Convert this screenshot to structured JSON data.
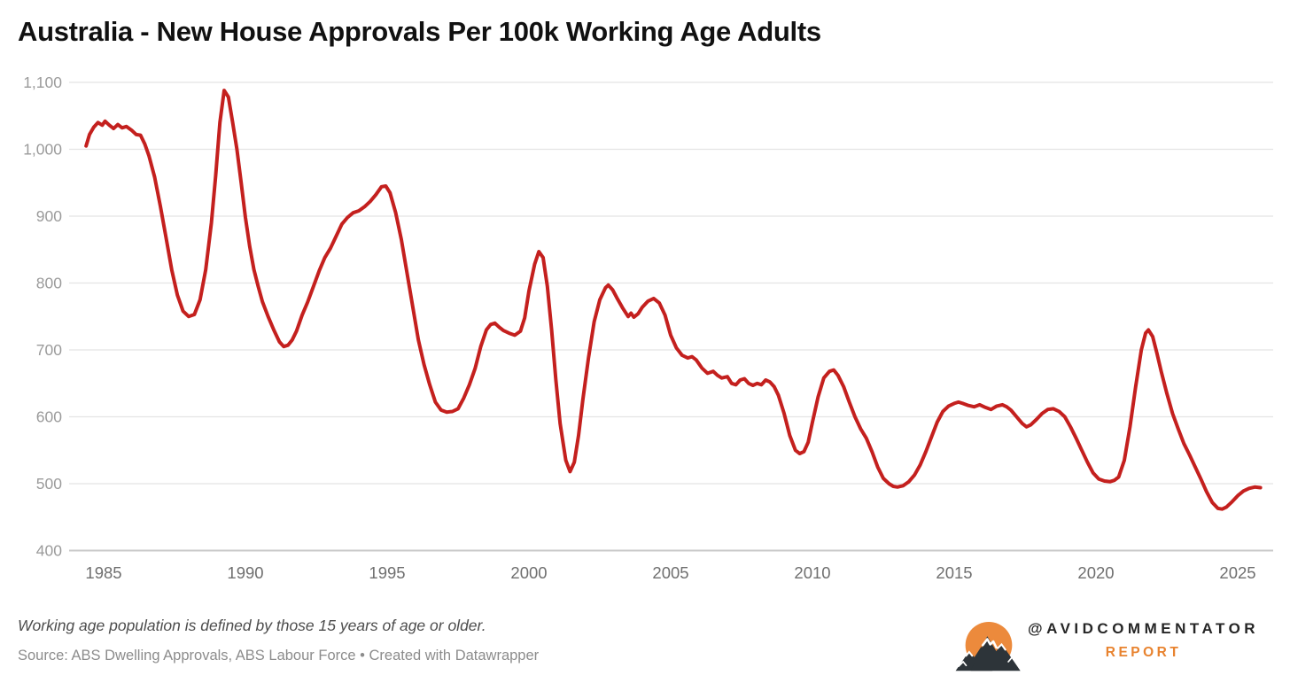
{
  "header": {
    "title": "Australia - New House Approvals Per 100k Working Age Adults"
  },
  "footer": {
    "note": "Working age population is defined by those 15 years of age or older.",
    "source": "Source: ABS Dwelling Approvals, ABS Labour Force • Created with Datawrapper"
  },
  "branding": {
    "handle": "@AVIDCOMMENTATOR",
    "subtitle": "REPORT",
    "icon": "mountain-sun-logo",
    "orange": "#ec8a3c",
    "dark": "#2d3439"
  },
  "chart_data": {
    "type": "line",
    "title": "Australia - New House Approvals Per 100k Working Age Adults",
    "xlabel": "",
    "ylabel": "",
    "grid": "horizontal",
    "legend": "none",
    "xlim": [
      1983.8,
      2026.25
    ],
    "ylim": [
      400,
      1100
    ],
    "x_ticks": [
      1985,
      1990,
      1995,
      2000,
      2005,
      2010,
      2015,
      2020,
      2025
    ],
    "y_ticks": [
      400,
      500,
      600,
      700,
      800,
      900,
      1000,
      1100
    ],
    "y_tick_labels": [
      "400",
      "500",
      "600",
      "700",
      "800",
      "900",
      "1,000",
      "1,100"
    ],
    "line_color": "#c4201e",
    "axis_label_color_y": "#9b9b9b",
    "axis_label_color_x": "#6f6f6f",
    "gridline_color": "#e4e4e4",
    "baseline_color": "#c9c9c9",
    "series": [
      {
        "name": "New house approvals per 100k working age adults",
        "points": [
          [
            1984.38,
            1005
          ],
          [
            1984.5,
            1022
          ],
          [
            1984.65,
            1033
          ],
          [
            1984.8,
            1040
          ],
          [
            1984.95,
            1036
          ],
          [
            1985.05,
            1042
          ],
          [
            1985.2,
            1036
          ],
          [
            1985.35,
            1031
          ],
          [
            1985.5,
            1037
          ],
          [
            1985.65,
            1032
          ],
          [
            1985.8,
            1034
          ],
          [
            1986.0,
            1028
          ],
          [
            1986.15,
            1022
          ],
          [
            1986.3,
            1021
          ],
          [
            1986.45,
            1008
          ],
          [
            1986.6,
            990
          ],
          [
            1986.8,
            958
          ],
          [
            1987.0,
            915
          ],
          [
            1987.2,
            868
          ],
          [
            1987.4,
            820
          ],
          [
            1987.6,
            782
          ],
          [
            1987.8,
            758
          ],
          [
            1988.0,
            750
          ],
          [
            1988.2,
            753
          ],
          [
            1988.4,
            775
          ],
          [
            1988.6,
            820
          ],
          [
            1988.8,
            890
          ],
          [
            1988.95,
            960
          ],
          [
            1989.1,
            1040
          ],
          [
            1989.25,
            1088
          ],
          [
            1989.4,
            1078
          ],
          [
            1989.55,
            1040
          ],
          [
            1989.7,
            1000
          ],
          [
            1989.85,
            950
          ],
          [
            1990.0,
            898
          ],
          [
            1990.15,
            855
          ],
          [
            1990.3,
            820
          ],
          [
            1990.45,
            795
          ],
          [
            1990.6,
            772
          ],
          [
            1990.8,
            750
          ],
          [
            1991.0,
            730
          ],
          [
            1991.2,
            712
          ],
          [
            1991.35,
            705
          ],
          [
            1991.5,
            707
          ],
          [
            1991.65,
            715
          ],
          [
            1991.8,
            728
          ],
          [
            1992.0,
            752
          ],
          [
            1992.2,
            772
          ],
          [
            1992.4,
            795
          ],
          [
            1992.6,
            818
          ],
          [
            1992.8,
            838
          ],
          [
            1993.0,
            852
          ],
          [
            1993.2,
            870
          ],
          [
            1993.4,
            888
          ],
          [
            1993.6,
            898
          ],
          [
            1993.8,
            905
          ],
          [
            1994.0,
            908
          ],
          [
            1994.2,
            914
          ],
          [
            1994.4,
            922
          ],
          [
            1994.6,
            932
          ],
          [
            1994.8,
            944
          ],
          [
            1994.95,
            945
          ],
          [
            1995.1,
            935
          ],
          [
            1995.3,
            905
          ],
          [
            1995.5,
            865
          ],
          [
            1995.7,
            815
          ],
          [
            1995.9,
            765
          ],
          [
            1996.1,
            715
          ],
          [
            1996.3,
            678
          ],
          [
            1996.5,
            648
          ],
          [
            1996.7,
            622
          ],
          [
            1996.9,
            610
          ],
          [
            1997.1,
            607
          ],
          [
            1997.3,
            608
          ],
          [
            1997.5,
            612
          ],
          [
            1997.7,
            628
          ],
          [
            1997.9,
            648
          ],
          [
            1998.1,
            672
          ],
          [
            1998.3,
            705
          ],
          [
            1998.5,
            730
          ],
          [
            1998.65,
            738
          ],
          [
            1998.8,
            740
          ],
          [
            1998.95,
            734
          ],
          [
            1999.1,
            729
          ],
          [
            1999.3,
            725
          ],
          [
            1999.5,
            722
          ],
          [
            1999.7,
            728
          ],
          [
            1999.85,
            748
          ],
          [
            2000.0,
            788
          ],
          [
            2000.2,
            828
          ],
          [
            2000.35,
            847
          ],
          [
            2000.5,
            838
          ],
          [
            2000.65,
            795
          ],
          [
            2000.8,
            730
          ],
          [
            2000.95,
            655
          ],
          [
            2001.1,
            590
          ],
          [
            2001.3,
            535
          ],
          [
            2001.45,
            518
          ],
          [
            2001.6,
            532
          ],
          [
            2001.75,
            572
          ],
          [
            2001.9,
            625
          ],
          [
            2002.1,
            688
          ],
          [
            2002.3,
            742
          ],
          [
            2002.5,
            775
          ],
          [
            2002.7,
            793
          ],
          [
            2002.8,
            797
          ],
          [
            2002.95,
            790
          ],
          [
            2003.1,
            778
          ],
          [
            2003.3,
            763
          ],
          [
            2003.5,
            750
          ],
          [
            2003.6,
            755
          ],
          [
            2003.7,
            749
          ],
          [
            2003.85,
            754
          ],
          [
            2004.0,
            764
          ],
          [
            2004.2,
            773
          ],
          [
            2004.4,
            777
          ],
          [
            2004.6,
            770
          ],
          [
            2004.8,
            752
          ],
          [
            2005.0,
            722
          ],
          [
            2005.2,
            703
          ],
          [
            2005.4,
            692
          ],
          [
            2005.6,
            688
          ],
          [
            2005.75,
            690
          ],
          [
            2005.9,
            685
          ],
          [
            2006.1,
            673
          ],
          [
            2006.3,
            665
          ],
          [
            2006.5,
            668
          ],
          [
            2006.65,
            662
          ],
          [
            2006.8,
            658
          ],
          [
            2007.0,
            660
          ],
          [
            2007.15,
            650
          ],
          [
            2007.3,
            648
          ],
          [
            2007.45,
            655
          ],
          [
            2007.6,
            657
          ],
          [
            2007.75,
            650
          ],
          [
            2007.9,
            647
          ],
          [
            2008.05,
            650
          ],
          [
            2008.2,
            648
          ],
          [
            2008.35,
            655
          ],
          [
            2008.5,
            652
          ],
          [
            2008.65,
            645
          ],
          [
            2008.8,
            632
          ],
          [
            2009.0,
            605
          ],
          [
            2009.2,
            572
          ],
          [
            2009.4,
            550
          ],
          [
            2009.55,
            545
          ],
          [
            2009.7,
            548
          ],
          [
            2009.85,
            562
          ],
          [
            2010.0,
            592
          ],
          [
            2010.2,
            630
          ],
          [
            2010.4,
            658
          ],
          [
            2010.6,
            668
          ],
          [
            2010.75,
            670
          ],
          [
            2010.9,
            662
          ],
          [
            2011.1,
            645
          ],
          [
            2011.3,
            622
          ],
          [
            2011.5,
            600
          ],
          [
            2011.7,
            582
          ],
          [
            2011.9,
            568
          ],
          [
            2012.1,
            548
          ],
          [
            2012.3,
            525
          ],
          [
            2012.5,
            508
          ],
          [
            2012.7,
            500
          ],
          [
            2012.85,
            496
          ],
          [
            2013.0,
            495
          ],
          [
            2013.2,
            497
          ],
          [
            2013.4,
            503
          ],
          [
            2013.6,
            513
          ],
          [
            2013.8,
            528
          ],
          [
            2014.0,
            548
          ],
          [
            2014.2,
            570
          ],
          [
            2014.4,
            592
          ],
          [
            2014.6,
            608
          ],
          [
            2014.8,
            616
          ],
          [
            2015.0,
            620
          ],
          [
            2015.15,
            622
          ],
          [
            2015.3,
            620
          ],
          [
            2015.5,
            617
          ],
          [
            2015.7,
            615
          ],
          [
            2015.9,
            618
          ],
          [
            2016.1,
            614
          ],
          [
            2016.3,
            611
          ],
          [
            2016.5,
            616
          ],
          [
            2016.7,
            618
          ],
          [
            2016.85,
            615
          ],
          [
            2017.0,
            610
          ],
          [
            2017.2,
            600
          ],
          [
            2017.4,
            590
          ],
          [
            2017.55,
            585
          ],
          [
            2017.7,
            588
          ],
          [
            2017.9,
            596
          ],
          [
            2018.1,
            605
          ],
          [
            2018.3,
            611
          ],
          [
            2018.5,
            612
          ],
          [
            2018.7,
            608
          ],
          [
            2018.9,
            600
          ],
          [
            2019.1,
            585
          ],
          [
            2019.3,
            568
          ],
          [
            2019.5,
            550
          ],
          [
            2019.7,
            532
          ],
          [
            2019.9,
            516
          ],
          [
            2020.1,
            507
          ],
          [
            2020.3,
            504
          ],
          [
            2020.5,
            503
          ],
          [
            2020.65,
            505
          ],
          [
            2020.8,
            510
          ],
          [
            2021.0,
            535
          ],
          [
            2021.2,
            585
          ],
          [
            2021.4,
            645
          ],
          [
            2021.6,
            700
          ],
          [
            2021.75,
            725
          ],
          [
            2021.85,
            730
          ],
          [
            2022.0,
            720
          ],
          [
            2022.15,
            695
          ],
          [
            2022.3,
            668
          ],
          [
            2022.5,
            635
          ],
          [
            2022.7,
            605
          ],
          [
            2022.9,
            582
          ],
          [
            2023.1,
            560
          ],
          [
            2023.3,
            543
          ],
          [
            2023.5,
            525
          ],
          [
            2023.7,
            507
          ],
          [
            2023.9,
            488
          ],
          [
            2024.1,
            472
          ],
          [
            2024.3,
            463
          ],
          [
            2024.45,
            462
          ],
          [
            2024.6,
            465
          ],
          [
            2024.8,
            473
          ],
          [
            2025.0,
            482
          ],
          [
            2025.2,
            489
          ],
          [
            2025.4,
            493
          ],
          [
            2025.6,
            495
          ],
          [
            2025.8,
            494
          ]
        ]
      }
    ]
  }
}
